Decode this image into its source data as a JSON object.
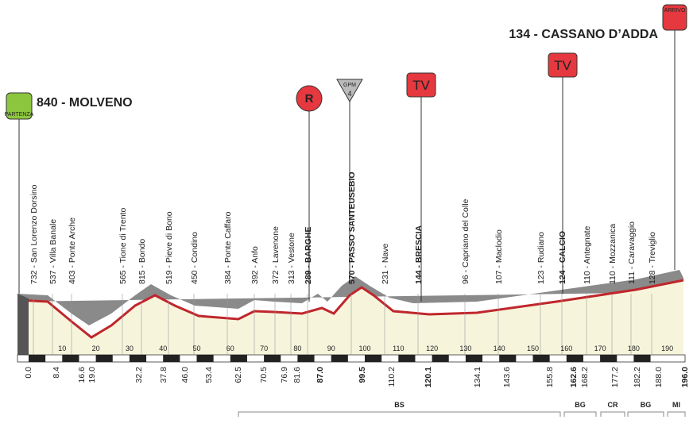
{
  "start": {
    "title": "840 - MOLVENO",
    "sign": "PARTENZA"
  },
  "finish": {
    "title": "134 - CASSANO D’ADDA",
    "sign": "ARRIVO"
  },
  "markers": {
    "sprint": "R",
    "climb": "GPM",
    "climb_category": "4",
    "tv": [
      "TV",
      "TV"
    ]
  },
  "waypoints": [
    {
      "label": "732 - San Lorenzo Dorsino"
    },
    {
      "label": "537 - Villa Banale"
    },
    {
      "label": "403 - Ponte Arche"
    },
    {
      "label": "565 - Tione di Trento"
    },
    {
      "label": "815 - Bondo"
    },
    {
      "label": "519 - Pieve di Bono"
    },
    {
      "label": "450 - Condino"
    },
    {
      "label": "384 - Ponte Caffaro"
    },
    {
      "label": "392 - Anfo"
    },
    {
      "label": "372 - Lavenone"
    },
    {
      "label": "313 - Vestone"
    },
    {
      "label": "289 - BARGHE",
      "bold": true
    },
    {
      "label": "570 - PASSO SANTEUSEBIO",
      "bold": true
    },
    {
      "label": "231 - Nave"
    },
    {
      "label": "144 - BRESCIA",
      "bold": true
    },
    {
      "label": "96 - Capriano del Colle"
    },
    {
      "label": "107 - Maclodio"
    },
    {
      "label": "123 - Rudiano"
    },
    {
      "label": "124 - CALCIO",
      "bold": true
    },
    {
      "label": "110 - Antegnate"
    },
    {
      "label": "110 - Mozzanica"
    },
    {
      "label": "111 - Caravaggio"
    },
    {
      "label": "128 - Treviglio"
    }
  ],
  "distances": [
    {
      "label": "0.0"
    },
    {
      "label": "8.4"
    },
    {
      "label": "16.6"
    },
    {
      "label": "19.0"
    },
    {
      "label": "32.2"
    },
    {
      "label": "37.8"
    },
    {
      "label": "46.0"
    },
    {
      "label": "53.4"
    },
    {
      "label": "62.5"
    },
    {
      "label": "70.5"
    },
    {
      "label": "76.9"
    },
    {
      "label": "81.6"
    },
    {
      "label": "87.0",
      "bold": true
    },
    {
      "label": "99.5",
      "bold": true
    },
    {
      "label": "110.2"
    },
    {
      "label": "120.1",
      "bold": true
    },
    {
      "label": "134.1"
    },
    {
      "label": "143.6"
    },
    {
      "label": "155.8"
    },
    {
      "label": "162.6",
      "bold": true
    },
    {
      "label": "168.2"
    },
    {
      "label": "177.2"
    },
    {
      "label": "182.2"
    },
    {
      "label": "188.0"
    },
    {
      "label": "196.0",
      "bold": true
    }
  ],
  "scale_ticks": [
    10,
    20,
    30,
    40,
    50,
    60,
    70,
    80,
    90,
    100,
    110,
    120,
    130,
    140,
    150,
    160,
    170,
    180,
    190
  ],
  "provinces": [
    "BS",
    "BG",
    "CR",
    "BG",
    "MI"
  ]
}
